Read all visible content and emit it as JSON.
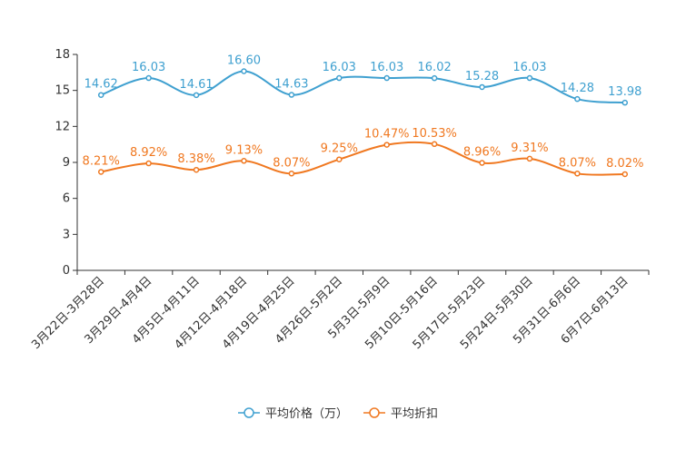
{
  "chart_data": {
    "type": "line",
    "title": "",
    "xlabel": "",
    "ylabel": "",
    "ylim": [
      0,
      18
    ],
    "yticks": [
      0,
      3,
      6,
      9,
      12,
      15,
      18
    ],
    "categories": [
      "3月22日-3月28日",
      "3月29日-4月4日",
      "4月5日-4月11日",
      "4月12日-4月18日",
      "4月19日-4月25日",
      "4月26日-5月2日",
      "5月3日-5月9日",
      "5月10日-5月16日",
      "5月17日-5月23日",
      "5月24日-5月30日",
      "5月31日-6月6日",
      "6月7日-6月13日"
    ],
    "series": [
      {
        "name": "平均价格（万）",
        "color": "#3fa0d0",
        "values": [
          14.62,
          16.03,
          14.61,
          16.6,
          14.63,
          16.03,
          16.03,
          16.02,
          15.28,
          16.03,
          14.28,
          13.98
        ],
        "labels": [
          "14.62",
          "16.03",
          "14.61",
          "16.60",
          "14.63",
          "16.03",
          "16.03",
          "16.02",
          "15.28",
          "16.03",
          "14.28",
          "13.98"
        ]
      },
      {
        "name": "平均折扣",
        "color": "#f07820",
        "values": [
          8.21,
          8.92,
          8.38,
          9.13,
          8.07,
          9.25,
          10.47,
          10.53,
          8.96,
          9.31,
          8.07,
          8.02
        ],
        "labels": [
          "8.21%",
          "8.92%",
          "8.38%",
          "9.13%",
          "8.07%",
          "9.25%",
          "10.47%",
          "10.53%",
          "8.96%",
          "9.31%",
          "8.07%",
          "8.02%"
        ]
      }
    ],
    "legend": "bottom-center",
    "grid": false
  }
}
